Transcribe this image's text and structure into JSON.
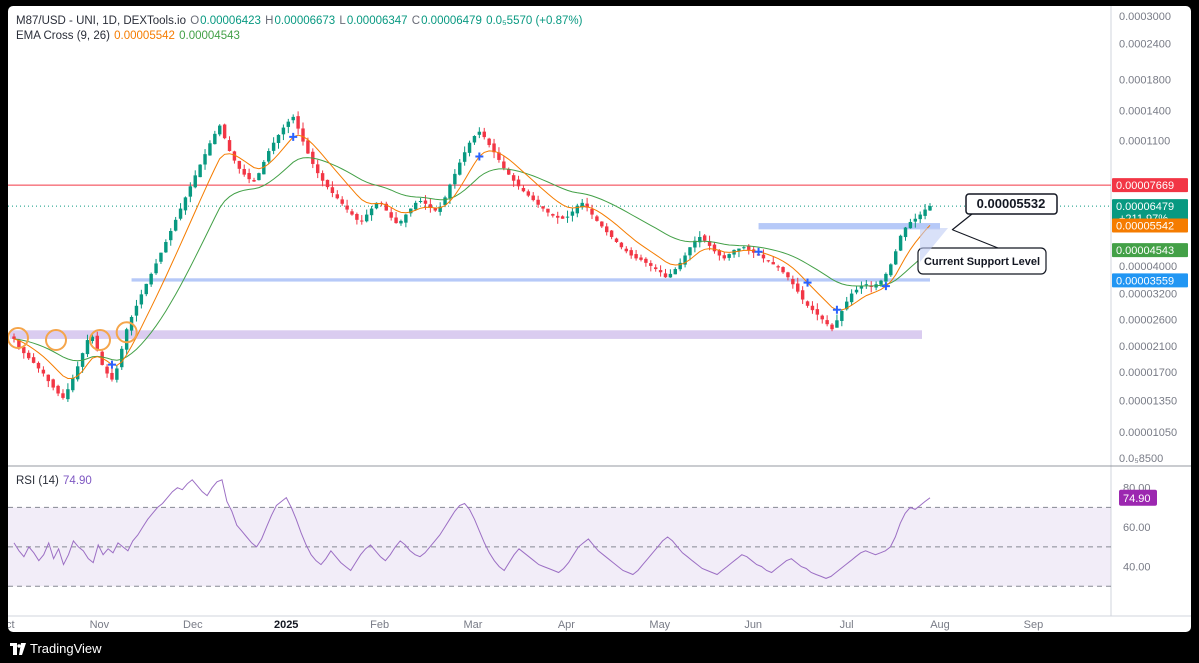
{
  "legend": {
    "symbol": "M87/USD - UNI, 1D, DEXTools.io",
    "o_label": "O",
    "o_value": "0.00006423",
    "h_label": "H",
    "h_value": "0.00006673",
    "l_label": "L",
    "l_value": "0.00006347",
    "c_label": "C",
    "c_value": "0.00006479",
    "change": "0.0₅5570 (+0.87%)",
    "ema_label": "EMA Cross (9, 26)",
    "ema9_value": "0.00005542",
    "ema26_value": "0.00004543",
    "rsi_label": "RSI (14)",
    "rsi_value": "74.90"
  },
  "colors": {
    "up": "#089981",
    "down": "#f23645",
    "ema9": "#f57c00",
    "ema26": "#43a047",
    "rsi": "#9c6fc4",
    "resistance": "#f23645",
    "support_zone": "#aec3f7",
    "low_zone": "#d6c7ee",
    "circle": "#f5a54a"
  },
  "annotations": {
    "callout_value": "0.00005532",
    "callout_label": "Current Support Level"
  },
  "footer": {
    "brand": "TradingView",
    "logo_icon": "tradingview-logo-icon"
  },
  "chart_data": [
    {
      "type": "candlestick",
      "yscale": "log",
      "ylim": [
        8.5e-06,
        0.0003
      ],
      "y_ticks": [
        "0.0003000",
        "0.0002400",
        "0.0001800",
        "0.0001400",
        "0.0001100",
        "0.00007669",
        "0.00006479",
        "0.00005542",
        "0.00004543",
        "0.00004000",
        "0.00003559",
        "0.00003200",
        "0.00002600",
        "0.00002100",
        "0.00001700",
        "0.00001350",
        "0.00001050",
        "0.0₅8500"
      ],
      "y_tick_values": [
        0.0003,
        0.00024,
        0.00018,
        0.00014,
        0.00011,
        7.669e-05,
        6.479e-05,
        5.542e-05,
        4.543e-05,
        4e-05,
        3.559e-05,
        3.2e-05,
        2.6e-05,
        2.1e-05,
        1.7e-05,
        1.35e-05,
        1.05e-05,
        8.5e-06
      ],
      "x_ticks": [
        "Oct",
        "Nov",
        "Dec",
        "2025",
        "Feb",
        "Mar",
        "Apr",
        "May",
        "Jun",
        "Jul",
        "Aug",
        "Sep"
      ],
      "price_labels": [
        {
          "text": "0.00007669",
          "value": 7.669e-05,
          "color": "#f23645"
        },
        {
          "text": "0.00006479",
          "sub": "+211.97%",
          "value": 6.479e-05,
          "color": "#089981"
        },
        {
          "text": "0.00005542",
          "value": 5.542e-05,
          "color": "#f57c00"
        },
        {
          "text": "0.00004543",
          "value": 4.543e-05,
          "color": "#43a047"
        },
        {
          "text": "0.00003559",
          "value": 3.559e-05,
          "color": "#2196f3"
        }
      ],
      "resistance_level": 7.669e-05,
      "last_close": 6.479e-05,
      "support_zone_1": [
        5.37e-05,
        5.65e-05
      ],
      "support_zone_2": [
        3.525e-05,
        3.62e-05
      ],
      "support_zone_3": [
        2.22e-05,
        2.38e-05
      ],
      "series": [
        {
          "name": "Price",
          "values": [
            2.22e-05,
            2.08e-05,
            1.98e-05,
            1.9e-05,
            1.83e-05,
            1.75e-05,
            1.68e-05,
            1.58e-05,
            1.5e-05,
            1.43e-05,
            1.38e-05,
            1.48e-05,
            1.62e-05,
            1.78e-05,
            1.98e-05,
            2.2e-05,
            2.26e-05,
            2.02e-05,
            1.8e-05,
            1.68e-05,
            1.6e-05,
            1.75e-05,
            2.05e-05,
            2.4e-05,
            2.65e-05,
            2.9e-05,
            3.18e-05,
            3.46e-05,
            3.75e-05,
            4.08e-05,
            4.45e-05,
            4.85e-05,
            5.3e-05,
            5.8e-05,
            6.35e-05,
            6.95e-05,
            7.6e-05,
            8.3e-05,
            9.05e-05,
            9.85e-05,
            0.0001075,
            0.000116,
            0.000124,
            0.000112,
            0.000101,
            9.35e-05,
            8.75e-05,
            8.35e-05,
            8.05e-05,
            7.9e-05,
            8.45e-05,
            9.25e-05,
            0.000101,
            0.000108,
            0.000115,
            0.000122,
            0.000128,
            0.000133,
            0.000121,
            0.000109,
            9.9e-05,
            9.1e-05,
            8.45e-05,
            7.95e-05,
            7.55e-05,
            7.2e-05,
            6.9e-05,
            6.6e-05,
            6.3e-05,
            6.05e-05,
            5.8e-05,
            5.75e-05,
            6.05e-05,
            6.35e-05,
            6.65e-05,
            6.6e-05,
            6.25e-05,
            5.9e-05,
            5.65e-05,
            5.75e-05,
            6.05e-05,
            6.35e-05,
            6.65e-05,
            6.75e-05,
            6.6e-05,
            6.4e-05,
            6.25e-05,
            6.45e-05,
            6.95e-05,
            7.7e-05,
            8.4e-05,
            9.2e-05,
            0.0001,
            0.000108,
            0.000114,
            0.000118,
            0.000113,
            0.000106,
            0.0001,
            9.4e-05,
            8.8e-05,
            8.35e-05,
            7.95e-05,
            7.6e-05,
            7.3e-05,
            7.05e-05,
            6.8e-05,
            6.55e-05,
            6.35e-05,
            6.15e-05,
            6e-05,
            5.9e-05,
            5.85e-05,
            5.95e-05,
            6.2e-05,
            6.5e-05,
            6.65e-05,
            6.4e-05,
            6.05e-05,
            5.75e-05,
            5.5e-05,
            5.25e-05,
            5.05e-05,
            4.85e-05,
            4.65e-05,
            4.5e-05,
            4.35e-05,
            4.25e-05,
            4.2e-05,
            4.1e-05,
            4e-05,
            3.9e-05,
            3.8e-05,
            3.65e-05,
            3.75e-05,
            3.9e-05,
            4.1e-05,
            4.35e-05,
            4.65e-05,
            4.9e-05,
            5.05e-05,
            4.9e-05,
            4.7e-05,
            4.5e-05,
            4.35e-05,
            4.25e-05,
            4.4e-05,
            4.55e-05,
            4.6e-05,
            4.65e-05,
            4.55e-05,
            4.45e-05,
            4.35e-05,
            4.25e-05,
            4.15e-05,
            4.05e-05,
            3.95e-05,
            3.8e-05,
            3.65e-05,
            3.45e-05,
            3.25e-05,
            3.05e-05,
            2.9e-05,
            2.8e-05,
            2.7e-05,
            2.6e-05,
            2.5e-05,
            2.4e-05,
            2.58e-05,
            2.78e-05,
            3e-05,
            3.2e-05,
            3.3e-05,
            3.4e-05,
            3.45e-05,
            3.4e-05,
            3.45e-05,
            3.55e-05,
            3.75e-05,
            4.05e-05,
            4.5e-05,
            5.1e-05,
            5.45e-05,
            5.7e-05,
            5.85e-05,
            6.05e-05,
            6.3e-05,
            6.48e-05
          ]
        },
        {
          "name": "EMA 9",
          "color": "#f57c00"
        },
        {
          "name": "EMA 26",
          "color": "#43a047"
        }
      ]
    },
    {
      "type": "line",
      "ylim": [
        20,
        90
      ],
      "y_ticks": [
        "80.00",
        "60.00",
        "40.00"
      ],
      "y_tick_values": [
        80,
        60,
        40
      ],
      "band": [
        30,
        70
      ],
      "midline": 50,
      "series": [
        {
          "name": "RSI",
          "values": [
            52,
            48,
            45,
            50,
            47,
            43,
            46,
            52,
            44,
            49,
            41,
            46,
            53,
            50,
            48,
            44,
            42,
            51,
            46,
            49,
            47,
            52,
            50,
            48,
            53,
            56,
            60,
            64,
            67,
            70,
            72,
            75,
            78,
            80,
            79,
            82,
            84,
            81,
            78,
            76,
            80,
            83,
            84,
            73,
            68,
            61,
            58,
            55,
            52,
            50,
            54,
            60,
            66,
            71,
            73,
            75,
            70,
            64,
            57,
            51,
            46,
            43,
            41,
            44,
            48,
            45,
            42,
            40,
            38,
            42,
            46,
            49,
            51,
            48,
            45,
            43,
            46,
            50,
            53,
            51,
            48,
            46,
            45,
            47,
            50,
            53,
            56,
            60,
            64,
            68,
            71,
            72,
            69,
            64,
            58,
            52,
            47,
            43,
            40,
            38,
            42,
            46,
            49,
            47,
            45,
            43,
            41,
            40,
            39,
            38,
            37,
            39,
            42,
            46,
            50,
            52,
            54,
            51,
            48,
            46,
            44,
            42,
            40,
            38,
            37,
            36,
            38,
            41,
            44,
            47,
            50,
            53,
            55,
            53,
            50,
            47,
            45,
            43,
            41,
            39,
            38,
            37,
            36,
            38,
            40,
            42,
            44,
            46,
            45,
            43,
            41,
            40,
            38,
            37,
            39,
            41,
            43,
            44,
            42,
            40,
            39,
            37,
            36,
            35,
            34,
            35,
            37,
            39,
            41,
            43,
            45,
            47,
            48,
            47,
            46,
            47,
            48,
            50,
            55,
            62,
            67,
            70,
            69,
            71,
            73,
            74.9
          ]
        }
      ]
    }
  ]
}
